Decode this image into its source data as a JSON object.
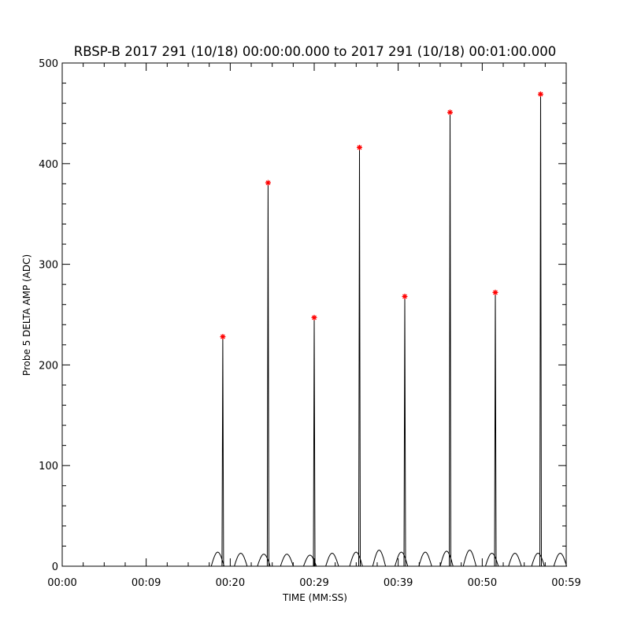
{
  "chart_data": {
    "type": "line",
    "title": "RBSP-B 2017 291 (10/18) 00:00:00.000 to 2017 291 (10/18) 00:01:00.000",
    "xlabel": "TIME (MM:SS)",
    "ylabel": "Probe 5 DELTA AMP (ADC)",
    "xlim": [
      0,
      59
    ],
    "ylim": [
      0,
      500
    ],
    "x_ticks": [
      {
        "value": 0,
        "label": "00:00"
      },
      {
        "value": 9.83,
        "label": "00:09"
      },
      {
        "value": 19.67,
        "label": "00:20"
      },
      {
        "value": 29.5,
        "label": "00:29"
      },
      {
        "value": 39.33,
        "label": "00:39"
      },
      {
        "value": 49.17,
        "label": "00:50"
      },
      {
        "value": 59,
        "label": "00:59"
      }
    ],
    "y_ticks": [
      {
        "value": 0,
        "label": "0"
      },
      {
        "value": 100,
        "label": "100"
      },
      {
        "value": 200,
        "label": "200"
      },
      {
        "value": 300,
        "label": "300"
      },
      {
        "value": 400,
        "label": "400"
      },
      {
        "value": 500,
        "label": "500"
      }
    ],
    "grid": false,
    "series_color": "#000000",
    "marker_color": "#ff0000",
    "peaks": [
      {
        "x": 18.8,
        "y": 228
      },
      {
        "x": 24.1,
        "y": 381
      },
      {
        "x": 29.5,
        "y": 247
      },
      {
        "x": 34.8,
        "y": 416
      },
      {
        "x": 40.1,
        "y": 268
      },
      {
        "x": 45.4,
        "y": 451
      },
      {
        "x": 50.7,
        "y": 272
      },
      {
        "x": 56.0,
        "y": 469
      }
    ],
    "bumps": [
      {
        "x": 18.2,
        "y": 14
      },
      {
        "x": 20.9,
        "y": 13
      },
      {
        "x": 23.6,
        "y": 12
      },
      {
        "x": 26.3,
        "y": 12
      },
      {
        "x": 29.0,
        "y": 11
      },
      {
        "x": 31.6,
        "y": 13
      },
      {
        "x": 34.4,
        "y": 14
      },
      {
        "x": 37.1,
        "y": 16
      },
      {
        "x": 39.7,
        "y": 14
      },
      {
        "x": 42.5,
        "y": 14
      },
      {
        "x": 45.0,
        "y": 15
      },
      {
        "x": 47.7,
        "y": 16
      },
      {
        "x": 50.3,
        "y": 13
      },
      {
        "x": 53.0,
        "y": 13
      },
      {
        "x": 55.7,
        "y": 13
      },
      {
        "x": 58.3,
        "y": 13
      }
    ]
  }
}
